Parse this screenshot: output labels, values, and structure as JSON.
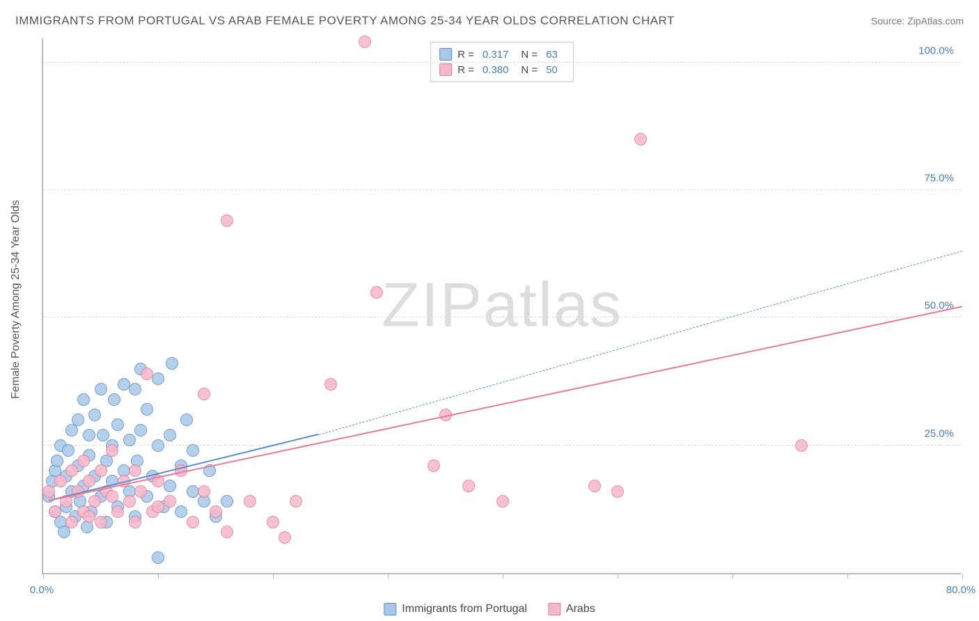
{
  "title": "IMMIGRANTS FROM PORTUGAL VS ARAB FEMALE POVERTY AMONG 25-34 YEAR OLDS CORRELATION CHART",
  "source": "Source: ZipAtlas.com",
  "watermark": {
    "part1": "ZIP",
    "part2": "atlas"
  },
  "chart": {
    "type": "scatter",
    "xlim": [
      0,
      80
    ],
    "ylim": [
      0,
      105
    ],
    "ylabel": "Female Poverty Among 25-34 Year Olds",
    "yticks": [
      25,
      50,
      75,
      100
    ],
    "ytick_labels": [
      "25.0%",
      "50.0%",
      "75.0%",
      "100.0%"
    ],
    "xticks": [
      0,
      10,
      20,
      30,
      40,
      50,
      60,
      70,
      80
    ],
    "xlabel_start": "0.0%",
    "xlabel_end": "80.0%",
    "grid_color": "#dddddd",
    "axis_color": "#bbbbbb",
    "marker_radius": 9,
    "marker_border_width": 1.5,
    "marker_fill_opacity": 0.25,
    "series": [
      {
        "name": "Immigrants from Portugal",
        "color_border": "#5b8ec9",
        "color_fill": "#a9c8e8",
        "R": "0.317",
        "N": "63",
        "trend": {
          "x1": 0.5,
          "y1": 14,
          "x2": 24,
          "y2": 27,
          "dashed_x2": 80,
          "dashed_y2": 63,
          "width": 2.5,
          "dash": true
        },
        "points": [
          [
            0.5,
            15
          ],
          [
            0.8,
            18
          ],
          [
            1,
            12
          ],
          [
            1,
            20
          ],
          [
            1.2,
            22
          ],
          [
            1.5,
            10
          ],
          [
            1.5,
            25
          ],
          [
            1.8,
            8
          ],
          [
            2,
            13
          ],
          [
            2,
            19
          ],
          [
            2.2,
            24
          ],
          [
            2.5,
            16
          ],
          [
            2.5,
            28
          ],
          [
            2.8,
            11
          ],
          [
            3,
            21
          ],
          [
            3,
            30
          ],
          [
            3.2,
            14
          ],
          [
            3.5,
            17
          ],
          [
            3.5,
            34
          ],
          [
            3.8,
            9
          ],
          [
            4,
            23
          ],
          [
            4,
            27
          ],
          [
            4.2,
            12
          ],
          [
            4.5,
            19
          ],
          [
            4.5,
            31
          ],
          [
            5,
            15
          ],
          [
            5,
            36
          ],
          [
            5.2,
            27
          ],
          [
            5.5,
            10
          ],
          [
            5.5,
            22
          ],
          [
            6,
            18
          ],
          [
            6,
            25
          ],
          [
            6.2,
            34
          ],
          [
            6.5,
            13
          ],
          [
            6.5,
            29
          ],
          [
            7,
            20
          ],
          [
            7,
            37
          ],
          [
            7.5,
            16
          ],
          [
            7.5,
            26
          ],
          [
            8,
            11
          ],
          [
            8,
            36
          ],
          [
            8.2,
            22
          ],
          [
            8.5,
            28
          ],
          [
            8.5,
            40
          ],
          [
            9,
            15
          ],
          [
            9,
            32
          ],
          [
            9.5,
            19
          ],
          [
            10,
            25
          ],
          [
            10,
            38
          ],
          [
            10.5,
            13
          ],
          [
            11,
            27
          ],
          [
            11,
            17
          ],
          [
            11.2,
            41
          ],
          [
            12,
            21
          ],
          [
            12,
            12
          ],
          [
            12.5,
            30
          ],
          [
            13,
            16
          ],
          [
            13,
            24
          ],
          [
            14,
            14
          ],
          [
            14.5,
            20
          ],
          [
            15,
            11
          ],
          [
            16,
            14
          ],
          [
            10,
            3
          ]
        ]
      },
      {
        "name": "Arabs",
        "color_border": "#e67a9b",
        "color_fill": "#f5b8cb",
        "R": "0.380",
        "N": "50",
        "trend": {
          "x1": 0.5,
          "y1": 14,
          "x2": 80,
          "y2": 52,
          "width": 2.5,
          "dash": false
        },
        "points": [
          [
            0.5,
            16
          ],
          [
            1,
            12
          ],
          [
            1.5,
            18
          ],
          [
            2,
            14
          ],
          [
            2.5,
            20
          ],
          [
            2.5,
            10
          ],
          [
            3,
            16
          ],
          [
            3.5,
            22
          ],
          [
            3.5,
            12
          ],
          [
            4,
            18
          ],
          [
            4.5,
            14
          ],
          [
            5,
            20
          ],
          [
            5,
            10
          ],
          [
            5.5,
            16
          ],
          [
            6,
            24
          ],
          [
            6.5,
            12
          ],
          [
            7,
            18
          ],
          [
            7.5,
            14
          ],
          [
            8,
            20
          ],
          [
            8,
            10
          ],
          [
            8.5,
            16
          ],
          [
            9,
            39
          ],
          [
            9.5,
            12
          ],
          [
            10,
            18
          ],
          [
            11,
            14
          ],
          [
            12,
            20
          ],
          [
            13,
            10
          ],
          [
            14,
            16
          ],
          [
            15,
            12
          ],
          [
            16,
            8
          ],
          [
            18,
            14
          ],
          [
            20,
            10
          ],
          [
            21,
            7
          ],
          [
            22,
            14
          ],
          [
            25,
            37
          ],
          [
            28,
            104
          ],
          [
            29,
            55
          ],
          [
            16,
            69
          ],
          [
            34,
            21
          ],
          [
            35,
            31
          ],
          [
            37,
            17
          ],
          [
            40,
            14
          ],
          [
            48,
            17
          ],
          [
            50,
            16
          ],
          [
            52,
            85
          ],
          [
            66,
            25
          ],
          [
            14,
            35
          ],
          [
            10,
            13
          ],
          [
            6,
            15
          ],
          [
            4,
            11
          ]
        ]
      }
    ]
  },
  "legend": {
    "r_label": "R =",
    "n_label": "N ="
  }
}
